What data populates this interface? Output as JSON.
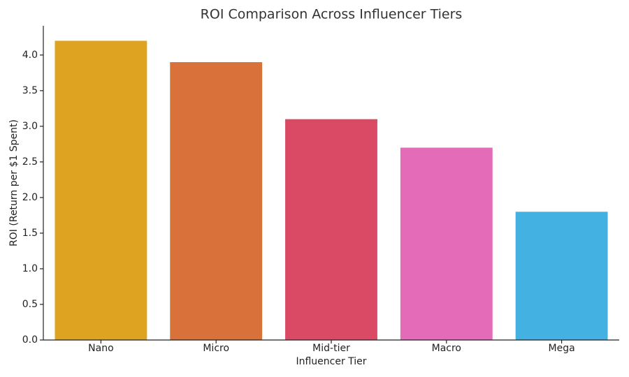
{
  "chart_data": {
    "type": "bar",
    "title": "ROI Comparison Across Influencer Tiers",
    "x_label": "Influencer Tier",
    "y_label": "ROI (Return per $1 Spent)",
    "categories": [
      "Nano",
      "Micro",
      "Mid-tier",
      "Macro",
      "Mega"
    ],
    "values": [
      4.2,
      3.9,
      3.1,
      2.7,
      1.8
    ],
    "colors": [
      "#dea321",
      "#d9713a",
      "#db4a65",
      "#e36bb8",
      "#43b1e1"
    ],
    "ylim": [
      0,
      4.41
    ],
    "yticks": [
      {
        "value": 0,
        "label": "0.0"
      },
      {
        "value": 0.5,
        "label": "0.5"
      },
      {
        "value": 1,
        "label": "1.0"
      },
      {
        "value": 1.5,
        "label": "1.5"
      },
      {
        "value": 2,
        "label": "2.0"
      },
      {
        "value": 2.5,
        "label": "2.5"
      },
      {
        "value": 3,
        "label": "3.0"
      },
      {
        "value": 3.5,
        "label": "3.5"
      },
      {
        "value": 4,
        "label": "4.0"
      }
    ],
    "grid": false
  }
}
